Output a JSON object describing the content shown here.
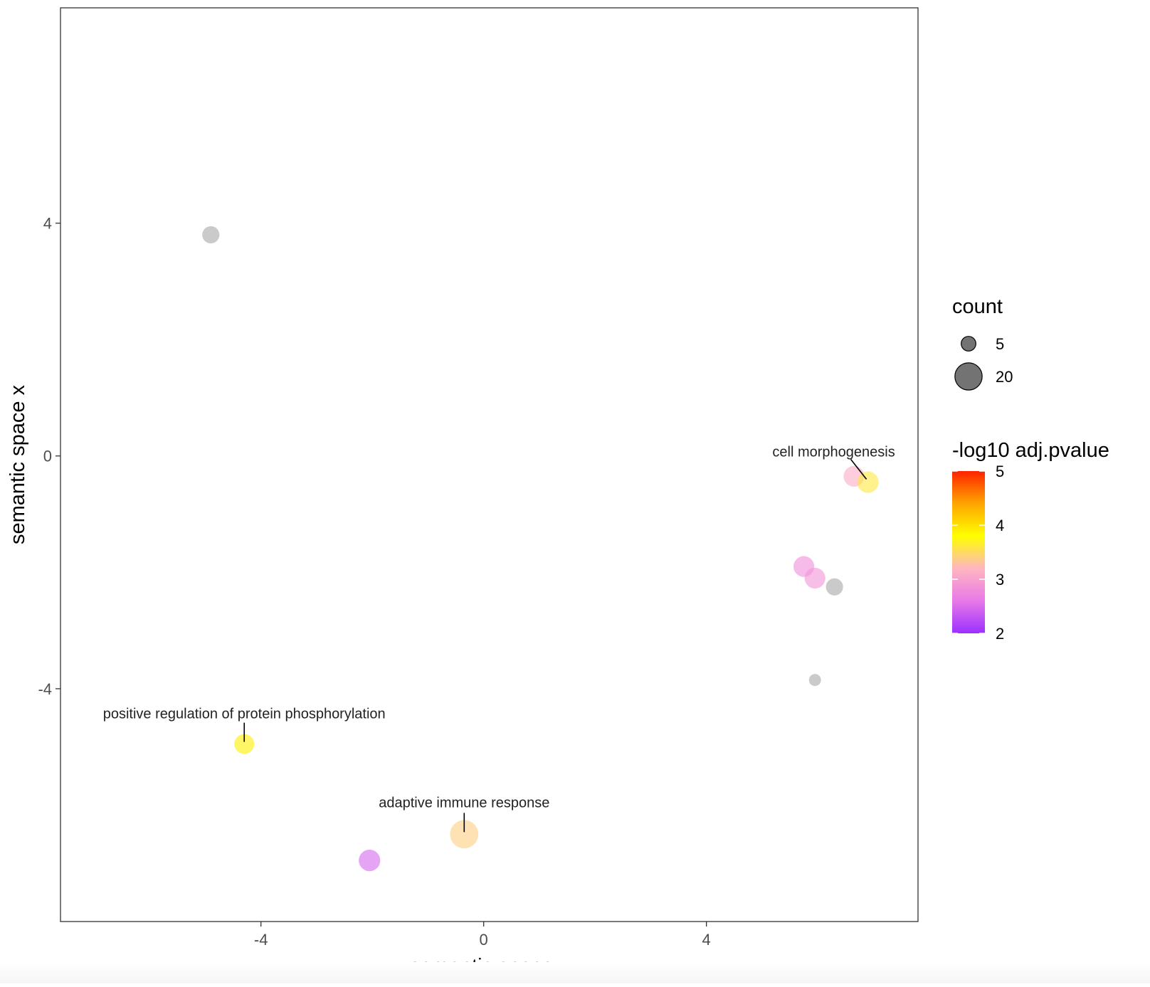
{
  "chart_data": {
    "type": "scatter",
    "title": "",
    "xlabel": "semantic space y",
    "ylabel": "semantic space x",
    "xlim": [
      -7.6,
      7.8
    ],
    "ylim": [
      -8.0,
      7.7
    ],
    "x_ticks": [
      -4,
      0,
      4
    ],
    "y_ticks": [
      -4,
      0,
      4
    ],
    "x_tick_labels": [
      "-4",
      "0",
      "4"
    ],
    "y_tick_labels": [
      "-4",
      "0",
      "4"
    ],
    "grid": false,
    "legend_position": "right",
    "size_legend": {
      "title": "count",
      "values": [
        5,
        20
      ],
      "labels": [
        "5",
        "20"
      ]
    },
    "color_legend": {
      "title": "-log10 adj.pvalue",
      "min": 2,
      "max": 5,
      "ticks": [
        5,
        4,
        3,
        2
      ],
      "tick_labels": [
        "5",
        "4",
        "3",
        "2"
      ],
      "stops": [
        "#9b30ff",
        "#e879e8",
        "#ffb6c1",
        "#ffff00",
        "#ffa500",
        "#ff2400"
      ]
    },
    "points": [
      {
        "x": -4.9,
        "y": 3.8,
        "count": 6,
        "pvalue": null
      },
      {
        "x": 6.65,
        "y": -0.35,
        "count": 10,
        "pvalue": 3.1
      },
      {
        "x": 6.9,
        "y": -0.45,
        "count": 11,
        "pvalue": 3.6,
        "label": "cell morphogenesis"
      },
      {
        "x": 5.75,
        "y": -1.9,
        "count": 10,
        "pvalue": 2.8
      },
      {
        "x": 5.95,
        "y": -2.1,
        "count": 10,
        "pvalue": 2.85
      },
      {
        "x": 6.3,
        "y": -2.25,
        "count": 6,
        "pvalue": null
      },
      {
        "x": 5.95,
        "y": -3.85,
        "count": 2,
        "pvalue": null
      },
      {
        "x": -4.3,
        "y": -4.95,
        "count": 9,
        "pvalue": 3.9,
        "label": "positive regulation of protein phosphorylation"
      },
      {
        "x": -0.35,
        "y": -6.5,
        "count": 22,
        "pvalue": 3.4,
        "label": "adaptive immune response"
      },
      {
        "x": -2.05,
        "y": -6.95,
        "count": 11,
        "pvalue": 2.45
      }
    ],
    "na_color": "#a6a6a6"
  }
}
